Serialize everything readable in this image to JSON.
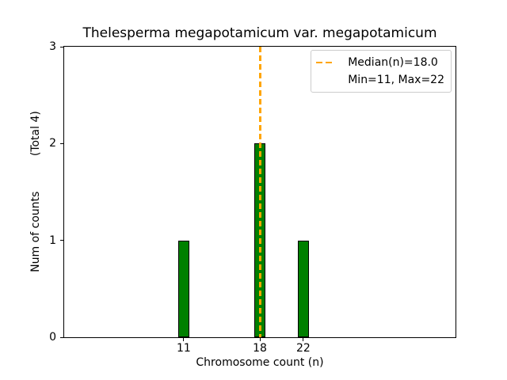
{
  "chart_data": {
    "type": "bar",
    "title": "Thelesperma megapotamicum var. megapotamicum",
    "xlabel": "Chromosome count (n)",
    "ylabel": "Num of counts          (Total 4)",
    "categories": [
      11,
      18,
      22
    ],
    "values": [
      1,
      2,
      1
    ],
    "total_counts": 4,
    "min": 11,
    "max": 22,
    "median": 18.0,
    "yticks": [
      0,
      1,
      2,
      3
    ],
    "ylim": [
      0,
      3
    ],
    "xlim": [
      0,
      36
    ],
    "grid": false,
    "bar_color": "#008000",
    "bar_edge_color": "#000000",
    "median_line_color": "#FFA500",
    "legend": {
      "position": "upper right",
      "entries": [
        {
          "label": "Median(n)=18.0",
          "marker": "orange-dashed-line"
        },
        {
          "label": "Min=11, Max=22",
          "marker": "none"
        }
      ]
    }
  }
}
